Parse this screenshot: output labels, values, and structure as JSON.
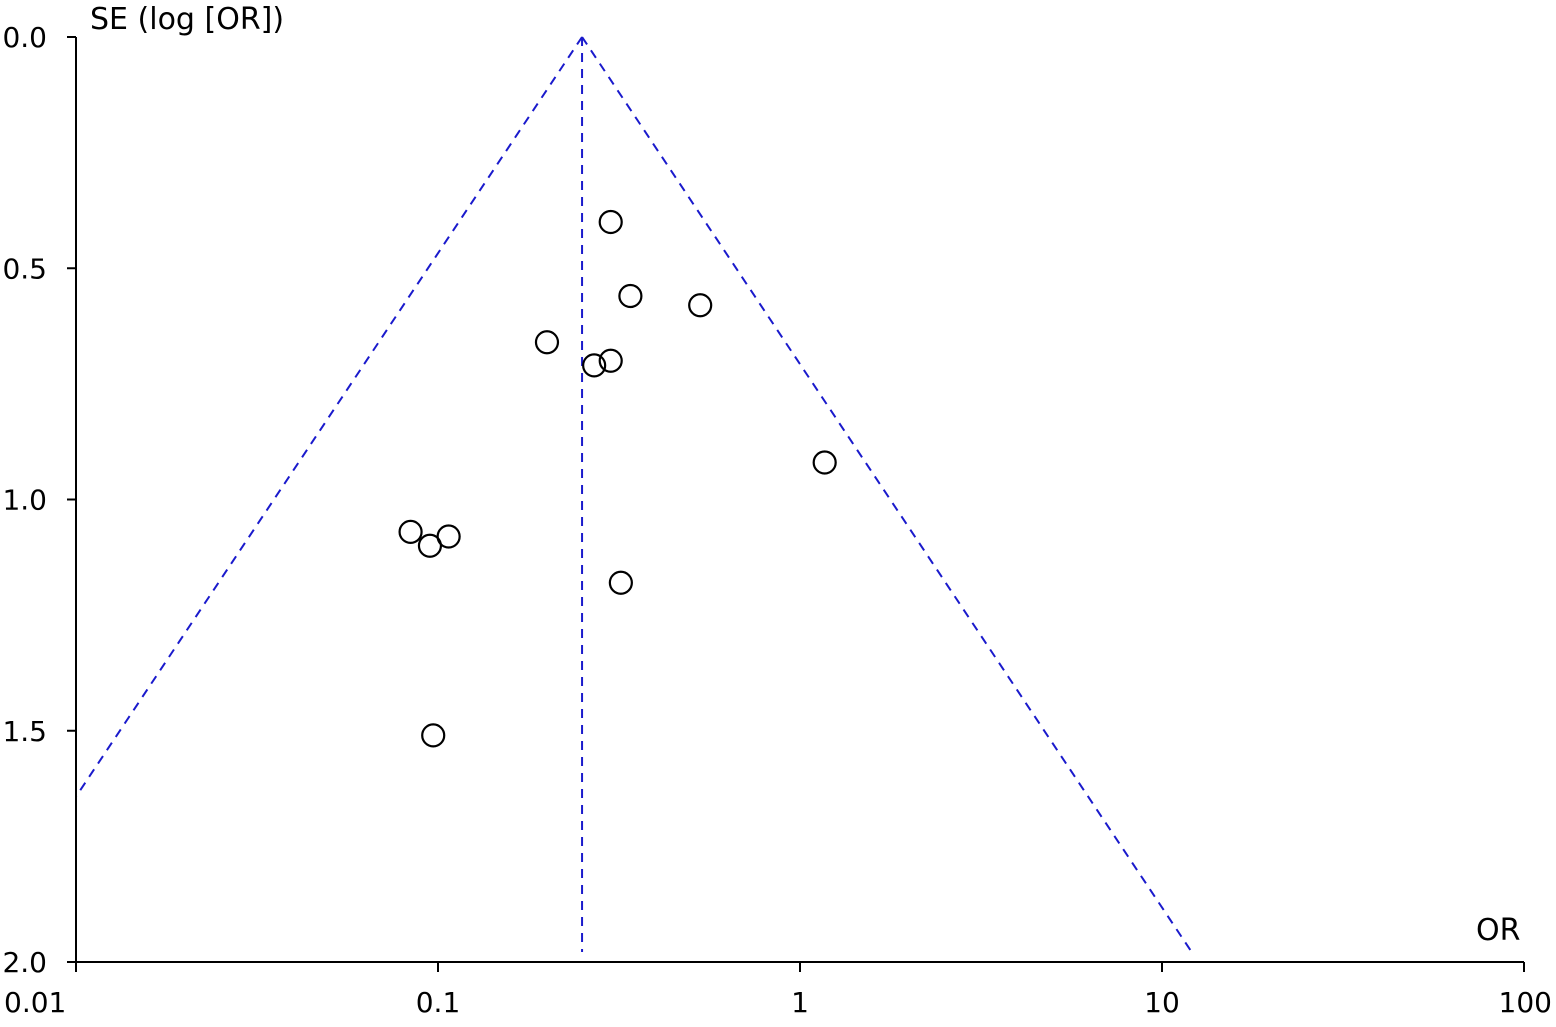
{
  "chart_data": {
    "type": "scatter",
    "title": "",
    "xlabel": "OR",
    "ylabel": "SE (log [OR])",
    "x_scale": "log",
    "y_reversed": true,
    "xlim": [
      0.01,
      100
    ],
    "ylim": [
      0.0,
      2.0
    ],
    "x_ticks": [
      "0.01",
      "0.1",
      "1",
      "10",
      "100"
    ],
    "x_tick_values": [
      0.01,
      0.1,
      1,
      10,
      100
    ],
    "y_ticks": [
      "0.0",
      "0.5",
      "1.0",
      "1.5",
      "2.0"
    ],
    "y_tick_values": [
      0.0,
      0.5,
      1.0,
      1.5,
      2.0
    ],
    "pooled_or": 0.25,
    "funnel_limits": "pseudo 95% confidence limits",
    "grid": false,
    "points": [
      {
        "x": 0.3,
        "y": 0.4
      },
      {
        "x": 0.34,
        "y": 0.56
      },
      {
        "x": 0.53,
        "y": 0.58
      },
      {
        "x": 0.2,
        "y": 0.66
      },
      {
        "x": 0.27,
        "y": 0.71
      },
      {
        "x": 0.3,
        "y": 0.7
      },
      {
        "x": 1.17,
        "y": 0.92
      },
      {
        "x": 0.084,
        "y": 1.07
      },
      {
        "x": 0.095,
        "y": 1.1
      },
      {
        "x": 0.107,
        "y": 1.08
      },
      {
        "x": 0.32,
        "y": 1.18
      },
      {
        "x": 0.097,
        "y": 1.51
      }
    ],
    "colors": {
      "reference": "#1a1acc",
      "points": "#000000",
      "axes": "#000000"
    }
  }
}
